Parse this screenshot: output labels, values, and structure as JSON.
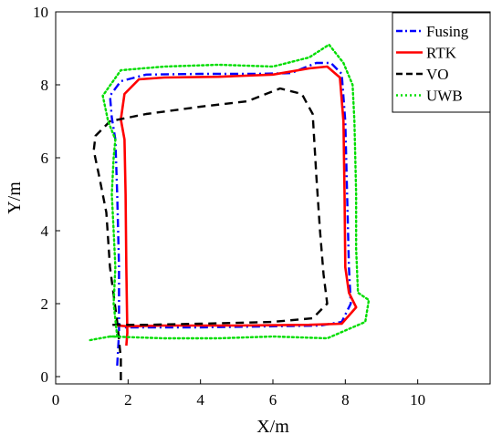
{
  "chart_data": {
    "type": "line",
    "xlabel": "X/m",
    "ylabel": "Y/m",
    "xlim": [
      0,
      12
    ],
    "ylim": [
      -0.2,
      10
    ],
    "xticks": [
      0,
      2,
      4,
      6,
      8,
      10
    ],
    "yticks": [
      0,
      2,
      4,
      6,
      8,
      10
    ],
    "grid": false,
    "legend_position": "top-right",
    "series": [
      {
        "name": "Fusing",
        "color": "#0000ff",
        "style": "dashdot",
        "points": [
          [
            1.7,
            0.3
          ],
          [
            1.75,
            1.2
          ],
          [
            1.75,
            3.0
          ],
          [
            1.7,
            5.0
          ],
          [
            1.65,
            6.5
          ],
          [
            1.55,
            7.1
          ],
          [
            1.5,
            7.7
          ],
          [
            1.8,
            8.1
          ],
          [
            2.5,
            8.28
          ],
          [
            4.0,
            8.3
          ],
          [
            5.5,
            8.3
          ],
          [
            6.5,
            8.32
          ],
          [
            7.2,
            8.6
          ],
          [
            7.6,
            8.6
          ],
          [
            7.9,
            8.3
          ],
          [
            8.0,
            7.0
          ],
          [
            8.05,
            5.0
          ],
          [
            8.1,
            3.0
          ],
          [
            8.15,
            2.0
          ],
          [
            7.9,
            1.5
          ],
          [
            7.3,
            1.4
          ],
          [
            6.0,
            1.38
          ],
          [
            4.0,
            1.35
          ],
          [
            2.5,
            1.35
          ],
          [
            1.9,
            1.35
          ]
        ]
      },
      {
        "name": "RTK",
        "color": "#ff0000",
        "style": "solid",
        "points": [
          [
            1.95,
            0.85
          ],
          [
            1.98,
            1.2
          ],
          [
            1.95,
            3.0
          ],
          [
            1.93,
            5.0
          ],
          [
            1.9,
            6.5
          ],
          [
            1.8,
            7.05
          ],
          [
            1.9,
            7.75
          ],
          [
            2.3,
            8.15
          ],
          [
            3.0,
            8.2
          ],
          [
            4.5,
            8.22
          ],
          [
            6.0,
            8.28
          ],
          [
            7.0,
            8.45
          ],
          [
            7.5,
            8.5
          ],
          [
            7.85,
            8.2
          ],
          [
            7.95,
            7.0
          ],
          [
            7.98,
            5.0
          ],
          [
            8.0,
            3.0
          ],
          [
            8.1,
            2.3
          ],
          [
            8.3,
            1.9
          ],
          [
            7.9,
            1.45
          ],
          [
            7.0,
            1.42
          ],
          [
            5.0,
            1.4
          ],
          [
            3.0,
            1.4
          ],
          [
            2.0,
            1.38
          ],
          [
            1.7,
            1.4
          ]
        ]
      },
      {
        "name": "VO",
        "color": "#000000",
        "style": "dashed",
        "points": [
          [
            1.8,
            -0.1
          ],
          [
            1.8,
            0.5
          ],
          [
            1.7,
            1.5
          ],
          [
            1.5,
            3.0
          ],
          [
            1.4,
            4.5
          ],
          [
            1.2,
            5.5
          ],
          [
            1.05,
            6.2
          ],
          [
            1.1,
            6.6
          ],
          [
            1.5,
            7.0
          ],
          [
            2.5,
            7.2
          ],
          [
            4.0,
            7.4
          ],
          [
            5.3,
            7.55
          ],
          [
            6.2,
            7.9
          ],
          [
            6.8,
            7.75
          ],
          [
            7.1,
            7.2
          ],
          [
            7.2,
            5.5
          ],
          [
            7.3,
            4.0
          ],
          [
            7.4,
            2.8
          ],
          [
            7.5,
            2.0
          ],
          [
            7.1,
            1.6
          ],
          [
            6.0,
            1.5
          ],
          [
            4.0,
            1.45
          ],
          [
            2.5,
            1.42
          ],
          [
            1.5,
            1.42
          ]
        ]
      },
      {
        "name": "UWB",
        "color": "#00dd00",
        "style": "dotted",
        "points": [
          [
            0.95,
            1.0
          ],
          [
            1.5,
            1.1
          ],
          [
            1.7,
            1.1
          ],
          [
            1.6,
            2.0
          ],
          [
            1.65,
            3.0
          ],
          [
            1.6,
            4.0
          ],
          [
            1.55,
            5.0
          ],
          [
            1.6,
            6.0
          ],
          [
            1.65,
            6.5
          ],
          [
            1.45,
            7.0
          ],
          [
            1.3,
            7.7
          ],
          [
            1.8,
            8.4
          ],
          [
            3.0,
            8.5
          ],
          [
            4.5,
            8.55
          ],
          [
            6.0,
            8.5
          ],
          [
            7.0,
            8.75
          ],
          [
            7.55,
            9.1
          ],
          [
            7.95,
            8.6
          ],
          [
            8.2,
            8.0
          ],
          [
            8.25,
            7.0
          ],
          [
            8.3,
            5.0
          ],
          [
            8.3,
            3.5
          ],
          [
            8.35,
            2.3
          ],
          [
            8.65,
            2.1
          ],
          [
            8.55,
            1.5
          ],
          [
            7.5,
            1.05
          ],
          [
            6.0,
            1.1
          ],
          [
            4.5,
            1.05
          ],
          [
            3.0,
            1.05
          ],
          [
            1.5,
            1.1
          ]
        ]
      }
    ]
  }
}
